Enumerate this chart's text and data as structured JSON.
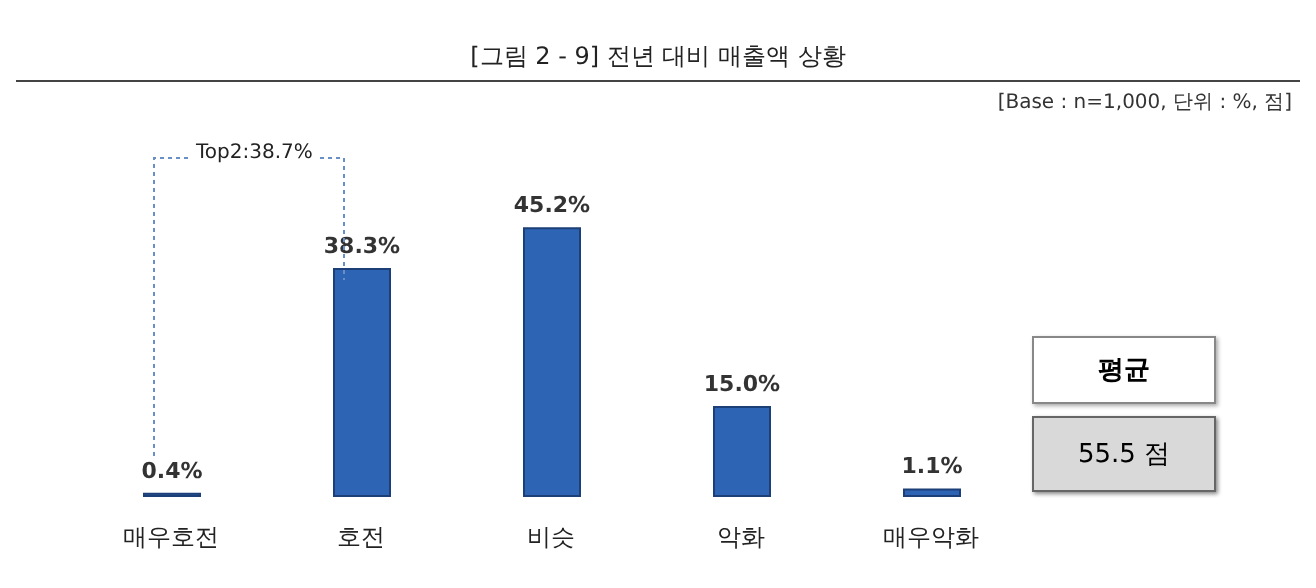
{
  "chart_data": {
    "type": "bar",
    "title": "[그림 2 - 9] 전년 대비 매출액 상황",
    "subtitle": "[Base : n=1,000, 단위 : %, 점]",
    "categories": [
      "매우호전",
      "호전",
      "비슷",
      "악화",
      "매우악화"
    ],
    "values": [
      0.4,
      38.3,
      45.2,
      15.0,
      1.1
    ],
    "value_labels": [
      "0.4%",
      "38.3%",
      "45.2%",
      "15.0%",
      "1.1%"
    ],
    "color": "#2e64b4",
    "annotations": [
      "Top2:38.7%",
      "평균",
      "55.5 점"
    ],
    "grid": false,
    "legend": false
  }
}
